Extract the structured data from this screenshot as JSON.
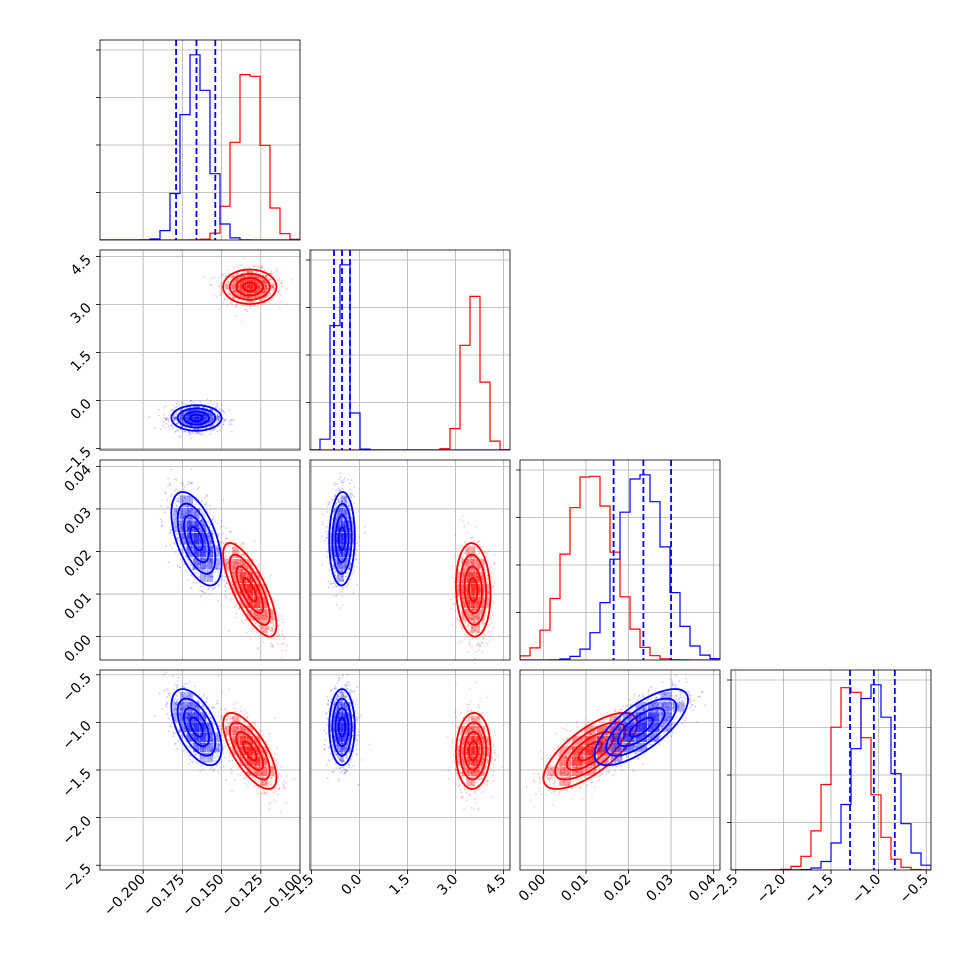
{
  "chart_data": {
    "type": "corner",
    "parameters": [
      {
        "ticks": [
          -0.2,
          -0.175,
          -0.15,
          -0.125,
          -0.1
        ],
        "tick_labels": [
          "−0.200",
          "−0.175",
          "−0.150",
          "−0.125",
          "−0.100"
        ],
        "range": [
          -0.2275,
          -0.1
        ]
      },
      {
        "ticks": [
          -1.5,
          0.0,
          1.5,
          3.0,
          4.5
        ],
        "tick_labels": [
          "−1.5",
          "0.0",
          "1.5",
          "3.0",
          "4.5"
        ],
        "range": [
          -1.55,
          4.7
        ]
      },
      {
        "ticks": [
          0.0,
          0.01,
          0.02,
          0.03,
          0.04
        ],
        "tick_labels": [
          "0.00",
          "0.01",
          "0.02",
          "0.03",
          "0.04"
        ],
        "range": [
          -0.0055,
          0.0415
        ]
      },
      {
        "ticks": [
          -2.5,
          -2.0,
          -1.5,
          -1.0,
          -0.5
        ],
        "tick_labels": [
          "−2.5",
          "−2.0",
          "−1.5",
          "−1.0",
          "−0.5"
        ],
        "range": [
          -2.55,
          -0.45
        ]
      }
    ],
    "series": [
      {
        "color": "#ff0000",
        "mean": [
          -0.132,
          3.55,
          0.011,
          -1.3
        ],
        "std": [
          0.0085,
          0.27,
          0.0055,
          0.2
        ],
        "corr": [
          [
            1,
            0,
            -0.75,
            -0.7
          ],
          [
            0,
            1,
            -0.1,
            0.05
          ],
          [
            -0.75,
            -0.1,
            1,
            0.72
          ],
          [
            -0.7,
            0.05,
            0.72,
            1
          ]
        ]
      },
      {
        "color": "#0000ff",
        "mean": [
          -0.166,
          -0.55,
          0.023,
          -1.05
        ],
        "std": [
          0.008,
          0.2,
          0.0055,
          0.2
        ],
        "corr": [
          [
            1,
            0,
            -0.55,
            -0.55
          ],
          [
            0,
            1,
            0.05,
            0.0
          ],
          [
            -0.55,
            0.05,
            1,
            0.72
          ],
          [
            -0.55,
            0.0,
            0.72,
            1
          ]
        ]
      }
    ],
    "quantile_lines": {
      "color": "#0000ff",
      "values": [
        [
          -0.179,
          -0.166,
          -0.154
        ],
        [
          -0.8,
          -0.55,
          -0.3
        ],
        [
          0.0165,
          0.0235,
          0.03
        ],
        [
          -1.3,
          -1.05,
          -0.83
        ]
      ]
    },
    "grid": true
  }
}
